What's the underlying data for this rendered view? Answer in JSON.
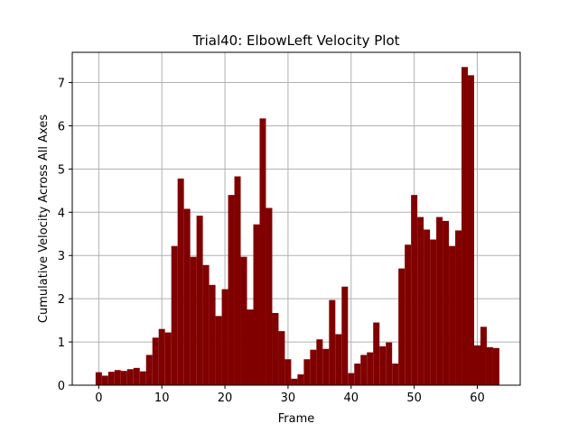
{
  "chart_data": {
    "type": "bar",
    "title": "Trial40: ElbowLeft Velocity Plot",
    "xlabel": "Frame",
    "ylabel": "Cumulative Velocity Across All Axes",
    "xlim": [
      -4.2,
      66.8
    ],
    "ylim": [
      0,
      7.7
    ],
    "xticks": [
      0,
      10,
      20,
      30,
      40,
      50,
      60
    ],
    "yticks": [
      0,
      1,
      2,
      3,
      4,
      5,
      6,
      7
    ],
    "grid": true,
    "bar_color": "#800000",
    "x": [
      0,
      1,
      2,
      3,
      4,
      5,
      6,
      7,
      8,
      9,
      10,
      11,
      12,
      13,
      14,
      15,
      16,
      17,
      18,
      19,
      20,
      21,
      22,
      23,
      24,
      25,
      26,
      27,
      28,
      29,
      30,
      31,
      32,
      33,
      34,
      35,
      36,
      37,
      38,
      39,
      40,
      41,
      42,
      43,
      44,
      45,
      46,
      47,
      48,
      49,
      50,
      51,
      52,
      53,
      54,
      55,
      56,
      57,
      58,
      59,
      60,
      61,
      62,
      63
    ],
    "values": [
      0.3,
      0.22,
      0.31,
      0.35,
      0.33,
      0.37,
      0.4,
      0.32,
      0.7,
      1.1,
      1.3,
      1.22,
      3.22,
      4.78,
      4.08,
      2.97,
      3.92,
      2.78,
      2.32,
      1.6,
      2.22,
      4.4,
      4.83,
      2.97,
      1.75,
      3.72,
      6.17,
      4.1,
      1.67,
      1.25,
      0.6,
      0.15,
      0.25,
      0.6,
      0.82,
      1.06,
      0.84,
      1.97,
      1.18,
      2.28,
      0.28,
      0.5,
      0.7,
      0.76,
      1.45,
      0.9,
      0.99,
      0.5,
      2.7,
      3.25,
      4.4,
      3.89,
      3.6,
      3.37,
      3.89,
      3.8,
      3.22,
      3.58,
      7.36,
      7.17,
      0.92,
      1.35,
      0.88,
      0.86
    ]
  }
}
